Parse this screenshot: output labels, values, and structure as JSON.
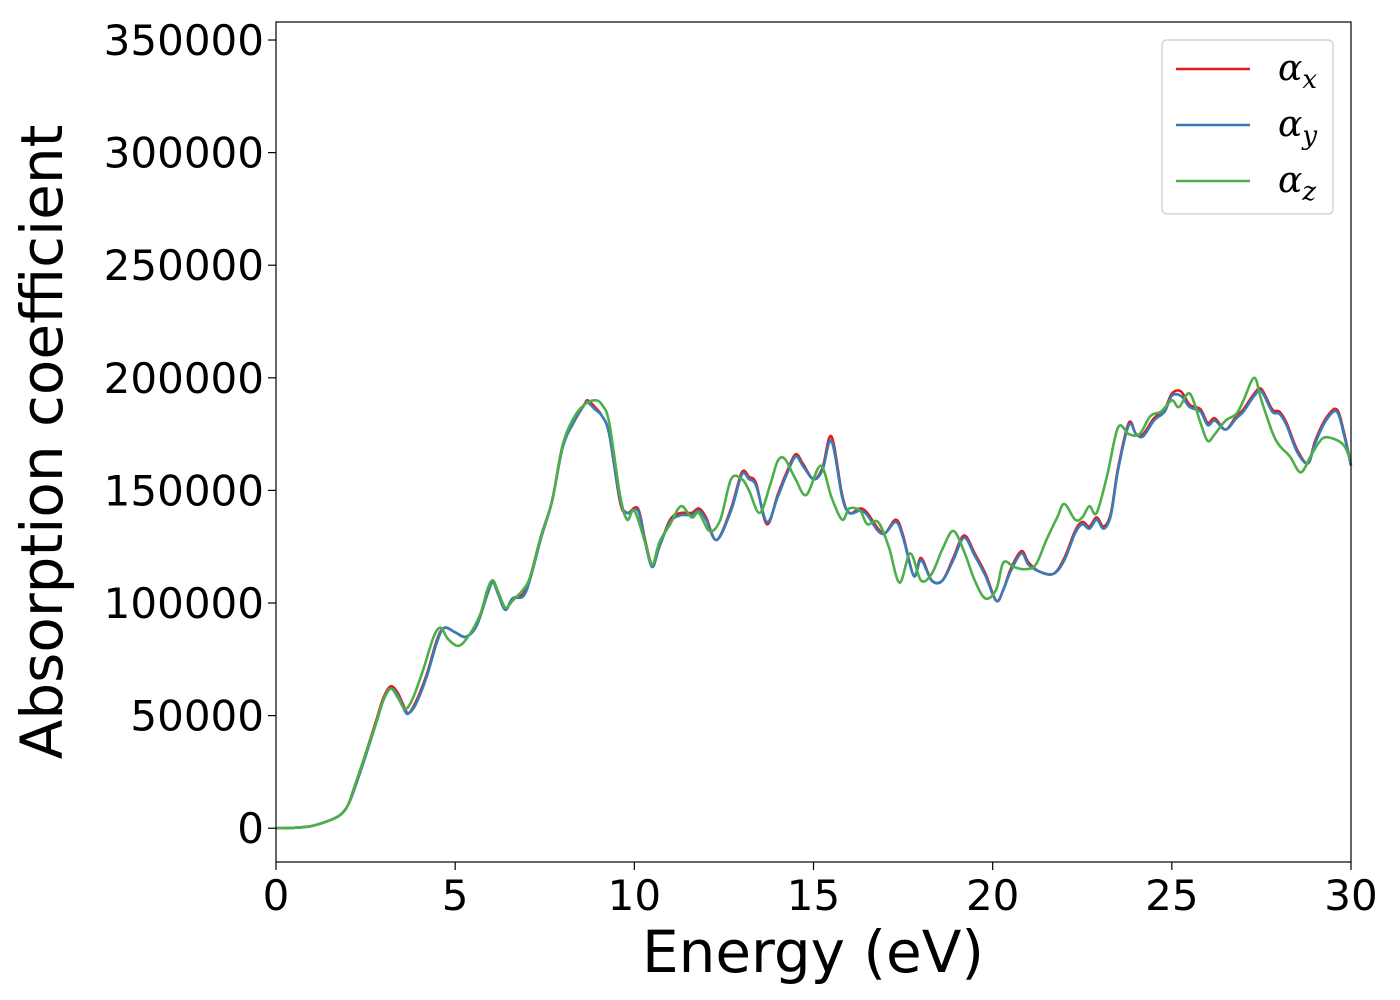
{
  "chart_data": {
    "type": "line",
    "title": "",
    "xlabel": "Energy (eV)",
    "ylabel": "Absorption coefficient",
    "xlim": [
      0,
      30
    ],
    "ylim": [
      -15000,
      358000
    ],
    "xticks": [
      0,
      5,
      10,
      15,
      20,
      25,
      30
    ],
    "yticks": [
      0,
      50000,
      100000,
      150000,
      200000,
      250000,
      300000,
      350000
    ],
    "grid": false,
    "legend_position": "top-right",
    "series": [
      {
        "name": "αx",
        "legend_main": "α",
        "legend_sub": "x",
        "color": "#e41a1c",
        "x": [
          0,
          0.5,
          1,
          1.5,
          1.8,
          2,
          2.2,
          2.5,
          2.8,
          3,
          3.2,
          3.4,
          3.6,
          3.7,
          3.9,
          4.2,
          4.5,
          4.7,
          5,
          5.3,
          5.6,
          5.9,
          6.05,
          6.2,
          6.4,
          6.6,
          6.9,
          7.1,
          7.4,
          7.7,
          8,
          8.3,
          8.6,
          8.7,
          8.9,
          9.1,
          9.3,
          9.6,
          9.8,
          10.1,
          10.3,
          10.5,
          10.7,
          11,
          11.3,
          11.6,
          11.8,
          12,
          12.3,
          12.7,
          13,
          13.2,
          13.4,
          13.7,
          14,
          14.25,
          14.5,
          14.7,
          15,
          15.25,
          15.5,
          15.8,
          16,
          16.3,
          16.5,
          16.8,
          17,
          17.3,
          17.5,
          17.8,
          18,
          18.3,
          18.6,
          18.9,
          19.2,
          19.5,
          19.8,
          20.1,
          20.3,
          20.5,
          20.8,
          21,
          21.3,
          21.7,
          22,
          22.3,
          22.5,
          22.7,
          22.9,
          23.1,
          23.3,
          23.5,
          23.8,
          24,
          24.2,
          24.5,
          24.8,
          25,
          25.25,
          25.5,
          25.8,
          26,
          26.2,
          26.5,
          26.8,
          27,
          27.3,
          27.5,
          27.8,
          28,
          28.2,
          28.5,
          28.8,
          29,
          29.3,
          29.6,
          29.8,
          30
        ],
        "y": [
          0,
          200,
          1000,
          3500,
          6000,
          10000,
          18000,
          33000,
          48000,
          58000,
          63000,
          60000,
          53000,
          51000,
          56000,
          68000,
          84000,
          89000,
          87000,
          85000,
          90000,
          104000,
          110000,
          104000,
          97000,
          102000,
          104000,
          112000,
          130000,
          145000,
          170000,
          180000,
          188000,
          190000,
          187000,
          183000,
          175000,
          145000,
          140000,
          142000,
          128000,
          117000,
          125000,
          137000,
          140000,
          140000,
          142000,
          138000,
          128000,
          142000,
          158000,
          156000,
          153000,
          135000,
          148000,
          158000,
          166000,
          162000,
          155000,
          160000,
          174000,
          148000,
          140000,
          142000,
          140000,
          133000,
          131000,
          137000,
          130000,
          112000,
          120000,
          110000,
          110000,
          120000,
          130000,
          122000,
          113000,
          101000,
          106000,
          115000,
          123000,
          118000,
          114000,
          113000,
          120000,
          132000,
          136000,
          134000,
          138000,
          134000,
          140000,
          160000,
          180000,
          175000,
          175000,
          182000,
          186000,
          193000,
          194000,
          188000,
          186000,
          180000,
          182000,
          177000,
          183000,
          186000,
          193000,
          195000,
          186000,
          185000,
          180000,
          168000,
          162000,
          172000,
          182000,
          186000,
          176000,
          161000
        ]
      },
      {
        "name": "αy",
        "legend_main": "α",
        "legend_sub": "y",
        "color": "#377eb8",
        "x": [
          0,
          0.5,
          1,
          1.5,
          1.8,
          2,
          2.2,
          2.5,
          2.8,
          3,
          3.2,
          3.4,
          3.6,
          3.7,
          3.9,
          4.2,
          4.5,
          4.7,
          5,
          5.3,
          5.6,
          5.9,
          6.05,
          6.2,
          6.4,
          6.6,
          6.9,
          7.1,
          7.4,
          7.7,
          8,
          8.3,
          8.6,
          8.7,
          8.9,
          9.1,
          9.3,
          9.6,
          9.8,
          10.1,
          10.3,
          10.5,
          10.7,
          11,
          11.3,
          11.6,
          11.8,
          12,
          12.3,
          12.7,
          13,
          13.2,
          13.4,
          13.7,
          14,
          14.25,
          14.5,
          14.7,
          15,
          15.25,
          15.5,
          15.8,
          16,
          16.3,
          16.5,
          16.8,
          17,
          17.3,
          17.5,
          17.8,
          18,
          18.3,
          18.6,
          18.9,
          19.2,
          19.5,
          19.8,
          20.1,
          20.3,
          20.5,
          20.8,
          21,
          21.3,
          21.7,
          22,
          22.3,
          22.5,
          22.7,
          22.9,
          23.1,
          23.3,
          23.5,
          23.8,
          24,
          24.2,
          24.5,
          24.8,
          25,
          25.25,
          25.5,
          25.8,
          26,
          26.2,
          26.5,
          26.8,
          27,
          27.3,
          27.5,
          27.8,
          28,
          28.2,
          28.5,
          28.8,
          29,
          29.3,
          29.6,
          29.8,
          30
        ],
        "y": [
          0,
          200,
          1000,
          3500,
          6000,
          10000,
          18000,
          32000,
          47000,
          57000,
          62000,
          59000,
          52000,
          51000,
          55000,
          67000,
          83000,
          89000,
          87000,
          85000,
          90000,
          104000,
          109000,
          104000,
          97000,
          102000,
          103000,
          111000,
          129000,
          145000,
          169000,
          180000,
          188000,
          189000,
          186000,
          183000,
          175000,
          146000,
          140000,
          141000,
          127000,
          116000,
          125000,
          136000,
          139000,
          139000,
          141000,
          137000,
          128000,
          141000,
          157000,
          155000,
          152000,
          136000,
          147000,
          157000,
          165000,
          161000,
          155000,
          159000,
          172000,
          147000,
          140000,
          141000,
          139000,
          132000,
          131000,
          136000,
          129000,
          112000,
          119000,
          110000,
          110000,
          119000,
          129000,
          121000,
          112000,
          101000,
          106000,
          114000,
          122000,
          117000,
          114000,
          113000,
          119000,
          131000,
          135000,
          133000,
          137000,
          133000,
          139000,
          159000,
          179000,
          175000,
          174000,
          181000,
          185000,
          192000,
          192000,
          187000,
          185000,
          179000,
          181000,
          177000,
          182000,
          185000,
          192000,
          194000,
          185000,
          184000,
          179000,
          167000,
          162000,
          171000,
          181000,
          185000,
          175000,
          161000
        ]
      },
      {
        "name": "αz",
        "legend_main": "α",
        "legend_sub": "z",
        "color": "#4daf4a",
        "x": [
          0,
          0.5,
          1,
          1.5,
          1.8,
          2,
          2.2,
          2.5,
          2.8,
          3,
          3.2,
          3.4,
          3.6,
          3.8,
          4.1,
          4.4,
          4.6,
          4.8,
          5.1,
          5.4,
          5.7,
          5.9,
          6.05,
          6.2,
          6.4,
          6.6,
          6.9,
          7.1,
          7.4,
          7.7,
          8,
          8.3,
          8.6,
          8.9,
          9.1,
          9.3,
          9.6,
          9.8,
          10,
          10.3,
          10.5,
          10.7,
          11,
          11.3,
          11.6,
          11.8,
          12.1,
          12.4,
          12.7,
          13,
          13.2,
          13.5,
          13.8,
          14,
          14.2,
          14.5,
          14.8,
          15.2,
          15.5,
          15.8,
          16,
          16.3,
          16.5,
          16.8,
          17.1,
          17.4,
          17.7,
          18,
          18.3,
          18.6,
          18.9,
          19.2,
          19.5,
          19.8,
          20.1,
          20.3,
          20.6,
          20.9,
          21.2,
          21.5,
          21.8,
          22,
          22.3,
          22.5,
          22.7,
          22.9,
          23.2,
          23.5,
          23.8,
          24.1,
          24.4,
          24.7,
          25,
          25.2,
          25.5,
          25.8,
          26,
          26.2,
          26.5,
          26.8,
          27,
          27.3,
          27.5,
          27.8,
          28,
          28.3,
          28.6,
          28.9,
          29.2,
          29.5,
          29.8,
          30
        ],
        "y": [
          0,
          200,
          1000,
          3500,
          6000,
          10000,
          19000,
          33000,
          47000,
          57000,
          62000,
          58000,
          53000,
          57000,
          70000,
          85000,
          89000,
          84000,
          81000,
          86000,
          95000,
          106000,
          110000,
          105000,
          98000,
          101000,
          106000,
          112000,
          130000,
          145000,
          170000,
          182000,
          188000,
          190000,
          188000,
          180000,
          148000,
          137000,
          141000,
          127000,
          117000,
          127000,
          135000,
          143000,
          138000,
          140000,
          132000,
          137000,
          155000,
          155000,
          150000,
          140000,
          153000,
          163000,
          164000,
          155000,
          148000,
          161000,
          147000,
          137000,
          142000,
          141000,
          135000,
          136000,
          125000,
          109000,
          122000,
          110000,
          113000,
          124000,
          132000,
          123000,
          110000,
          102000,
          106000,
          118000,
          116000,
          115000,
          117000,
          128000,
          138000,
          144000,
          137000,
          138000,
          143000,
          140000,
          157000,
          178000,
          175000,
          175000,
          183000,
          185000,
          190000,
          187000,
          193000,
          180000,
          172000,
          175000,
          181000,
          184000,
          190000,
          200000,
          190000,
          176000,
          170000,
          165000,
          158000,
          166000,
          173000,
          173000,
          170000,
          163000
        ]
      }
    ]
  }
}
